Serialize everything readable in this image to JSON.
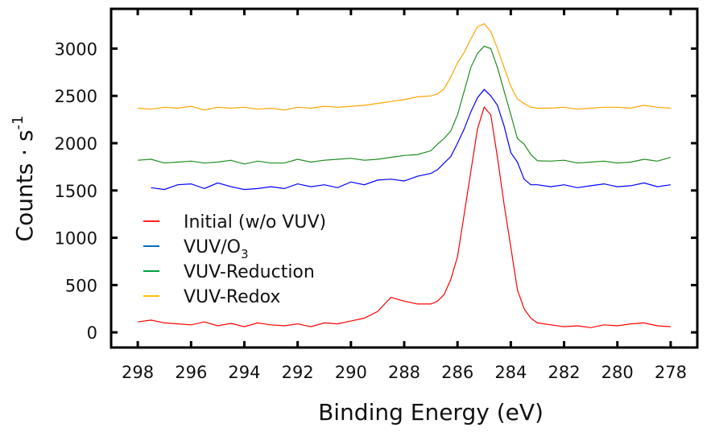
{
  "chart_data": {
    "type": "line",
    "title": "",
    "xlabel": "Binding Energy (eV)",
    "ylabel": "Counts · s",
    "ylabel_sup": "-1",
    "xlim": [
      299,
      277
    ],
    "ylim": [
      -160,
      3420
    ],
    "x_reversed": true,
    "grid": false,
    "legend_position": "center-left",
    "x_ticks": [
      298,
      296,
      294,
      292,
      290,
      288,
      286,
      284,
      282,
      280,
      278
    ],
    "y_ticks": [
      0,
      500,
      1000,
      1500,
      2000,
      2500,
      3000
    ],
    "x": [
      298,
      297.5,
      297,
      296.5,
      296,
      295.5,
      295,
      294.5,
      294,
      293.5,
      293,
      292.5,
      292,
      291.5,
      291,
      290.5,
      290,
      289.5,
      289,
      288.5,
      288,
      287.5,
      287,
      286.75,
      286.5,
      286.25,
      286,
      285.75,
      285.5,
      285.25,
      285,
      284.75,
      284.5,
      284.25,
      284,
      283.75,
      283.5,
      283.25,
      283,
      282.5,
      282,
      281.5,
      281,
      280.5,
      280,
      279.5,
      279,
      278.5,
      278
    ],
    "series": [
      {
        "name": "Initial (w/o VUV)",
        "color": "#ff0000",
        "legend_color": "#ff2020",
        "values": [
          110,
          130,
          100,
          90,
          80,
          110,
          70,
          95,
          60,
          100,
          80,
          70,
          90,
          60,
          100,
          90,
          120,
          150,
          220,
          370,
          330,
          300,
          300,
          330,
          400,
          560,
          800,
          1250,
          1700,
          2150,
          2381,
          2300,
          1850,
          1350,
          900,
          450,
          250,
          150,
          100,
          80,
          60,
          70,
          50,
          80,
          70,
          90,
          100,
          70,
          60
        ]
      },
      {
        "name": "VUV/O",
        "name_sub": "3",
        "color": "#0000ff",
        "legend_color": "#0070c0",
        "values": [
          null,
          1530,
          1510,
          1560,
          1570,
          1520,
          1580,
          1540,
          1510,
          1520,
          1540,
          1520,
          1570,
          1540,
          1560,
          1530,
          1590,
          1560,
          1610,
          1620,
          1600,
          1650,
          1680,
          1720,
          1790,
          1860,
          2000,
          2150,
          2330,
          2480,
          2568,
          2500,
          2400,
          2180,
          1900,
          1800,
          1620,
          1560,
          1560,
          1540,
          1560,
          1530,
          1550,
          1570,
          1540,
          1550,
          1580,
          1540,
          1560
        ]
      },
      {
        "name": "VUV-Reduction",
        "color": "#1e8c1e",
        "legend_color": "#00a040",
        "values": [
          1820,
          1830,
          1790,
          1800,
          1810,
          1790,
          1800,
          1820,
          1780,
          1810,
          1790,
          1790,
          1830,
          1800,
          1820,
          1830,
          1840,
          1820,
          1830,
          1850,
          1870,
          1880,
          1920,
          1990,
          2050,
          2130,
          2300,
          2550,
          2800,
          2950,
          3025,
          3000,
          2800,
          2550,
          2300,
          2050,
          1990,
          1880,
          1814,
          1810,
          1820,
          1790,
          1800,
          1810,
          1790,
          1800,
          1830,
          1810,
          1850
        ]
      },
      {
        "name": "VUV-Redox",
        "color": "#ffa500",
        "legend_color": "#ffc000",
        "values": [
          2370,
          2360,
          2380,
          2370,
          2390,
          2350,
          2380,
          2370,
          2380,
          2360,
          2370,
          2350,
          2380,
          2370,
          2390,
          2380,
          2390,
          2400,
          2420,
          2440,
          2460,
          2490,
          2500,
          2520,
          2576,
          2700,
          2850,
          2960,
          3100,
          3230,
          3263,
          3180,
          3000,
          2800,
          2600,
          2466,
          2420,
          2380,
          2370,
          2370,
          2380,
          2360,
          2370,
          2380,
          2380,
          2370,
          2400,
          2380,
          2370
        ]
      }
    ]
  }
}
